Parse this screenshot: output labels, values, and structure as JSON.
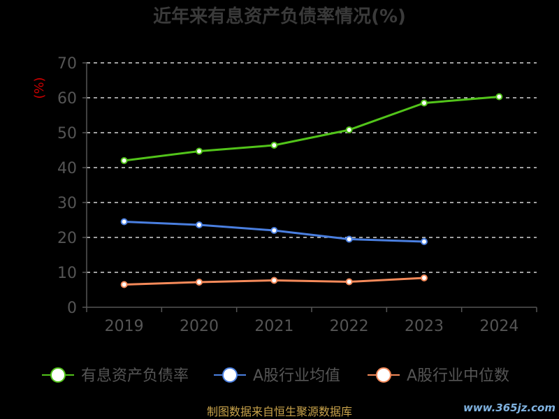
{
  "chart_data": {
    "type": "line",
    "title": "近年来有息资产负债率情况(%)",
    "ylabel": "(%)",
    "xlabel": "",
    "categories": [
      "2019",
      "2020",
      "2021",
      "2022",
      "2023",
      "2024"
    ],
    "ylim": [
      0,
      70
    ],
    "yticks": [
      0,
      10,
      20,
      30,
      40,
      50,
      60,
      70
    ],
    "grid": true,
    "legend_position": "bottom",
    "series": [
      {
        "name": "有息资产负债率",
        "values": [
          42.0,
          44.7,
          46.4,
          50.8,
          58.5,
          60.3
        ],
        "color": "#52c41a"
      },
      {
        "name": "A股行业均值",
        "values": [
          24.5,
          23.6,
          22.0,
          19.5,
          18.8,
          null
        ],
        "color": "#4a7fe0"
      },
      {
        "name": "A股行业中位数",
        "values": [
          6.5,
          7.2,
          7.7,
          7.3,
          8.4,
          null
        ],
        "color": "#f58a5a"
      }
    ]
  },
  "colors": {
    "title": "#3a3a3a",
    "axis": "#555555",
    "tick_text": "#555555",
    "grid": "#ffffff",
    "ylabel": "#cc0000",
    "legend_text": "#555555",
    "footer": "#c8a24a",
    "watermark": "#7fb2e0"
  },
  "footer": {
    "source": "制图数据来自恒生聚源数据库"
  },
  "watermark": {
    "text": "www.365jz.com"
  }
}
